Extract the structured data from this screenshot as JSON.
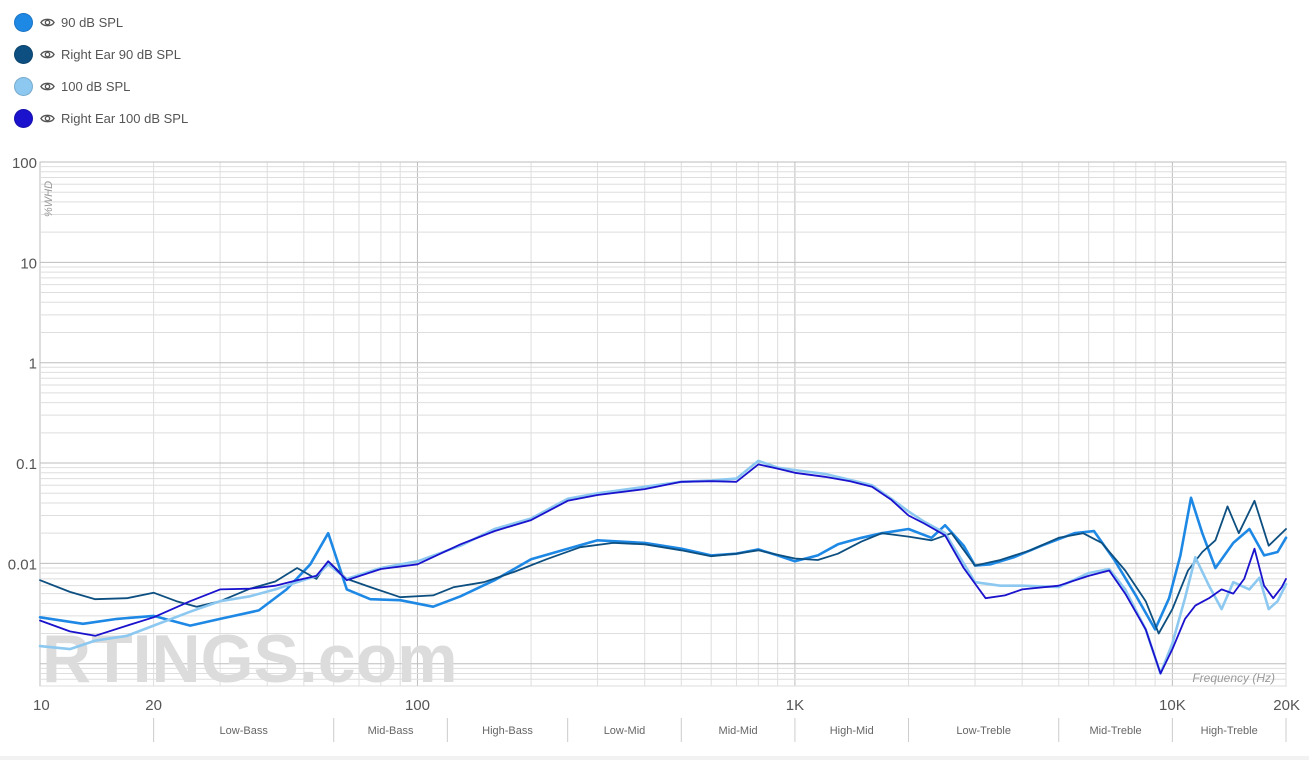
{
  "legend": [
    {
      "label": "90 dB SPL",
      "color": "#1e88e5"
    },
    {
      "label": "Right Ear 90 dB SPL",
      "color": "#0d4f80"
    },
    {
      "label": "100 dB SPL",
      "color": "#8cc8f0"
    },
    {
      "label": "Right Ear 100 dB SPL",
      "color": "#1a12cc"
    }
  ],
  "watermark": "RTINGS.com",
  "chart_data": {
    "type": "line",
    "xlabel": "Frequency (Hz)",
    "ylabel": "%WHD",
    "x_scale": "log",
    "y_scale": "log",
    "xlim": [
      10,
      20000
    ],
    "ylim": [
      0.0006,
      100
    ],
    "x_ticks": [
      {
        "value": 10,
        "label": "10"
      },
      {
        "value": 20,
        "label": "20"
      },
      {
        "value": 100,
        "label": "100"
      },
      {
        "value": 1000,
        "label": "1K"
      },
      {
        "value": 10000,
        "label": "10K"
      },
      {
        "value": 20000,
        "label": "20K"
      }
    ],
    "y_ticks": [
      {
        "value": 100,
        "label": "100"
      },
      {
        "value": 10,
        "label": "10"
      },
      {
        "value": 1,
        "label": "1"
      },
      {
        "value": 0.1,
        "label": "0.1"
      },
      {
        "value": 0.01,
        "label": "0.01"
      }
    ],
    "grid": true,
    "bands": [
      {
        "label": "Low-Bass",
        "from": 20,
        "to": 60
      },
      {
        "label": "Mid-Bass",
        "from": 60,
        "to": 120
      },
      {
        "label": "High-Bass",
        "from": 120,
        "to": 250
      },
      {
        "label": "Low-Mid",
        "from": 250,
        "to": 500
      },
      {
        "label": "Mid-Mid",
        "from": 500,
        "to": 1000
      },
      {
        "label": "High-Mid",
        "from": 1000,
        "to": 2000
      },
      {
        "label": "Low-Treble",
        "from": 2000,
        "to": 5000
      },
      {
        "label": "Mid-Treble",
        "from": 5000,
        "to": 10000
      },
      {
        "label": "High-Treble",
        "from": 10000,
        "to": 20000
      }
    ],
    "series": [
      {
        "name": "90 dB SPL",
        "color": "#1e88e5",
        "points": [
          [
            10,
            0.0029
          ],
          [
            13,
            0.0025
          ],
          [
            16,
            0.0028
          ],
          [
            20,
            0.003
          ],
          [
            25,
            0.0024
          ],
          [
            30,
            0.0028
          ],
          [
            38,
            0.0034
          ],
          [
            45,
            0.0055
          ],
          [
            52,
            0.0098
          ],
          [
            58,
            0.02
          ],
          [
            65,
            0.0055
          ],
          [
            75,
            0.0044
          ],
          [
            90,
            0.0043
          ],
          [
            110,
            0.0037
          ],
          [
            130,
            0.0047
          ],
          [
            160,
            0.0068
          ],
          [
            200,
            0.011
          ],
          [
            250,
            0.014
          ],
          [
            300,
            0.017
          ],
          [
            400,
            0.016
          ],
          [
            500,
            0.014
          ],
          [
            600,
            0.012
          ],
          [
            700,
            0.0125
          ],
          [
            800,
            0.0138
          ],
          [
            900,
            0.012
          ],
          [
            1000,
            0.0105
          ],
          [
            1150,
            0.012
          ],
          [
            1300,
            0.0155
          ],
          [
            1500,
            0.018
          ],
          [
            1700,
            0.02
          ],
          [
            2000,
            0.022
          ],
          [
            2300,
            0.018
          ],
          [
            2500,
            0.024
          ],
          [
            2800,
            0.015
          ],
          [
            3000,
            0.0095
          ],
          [
            3300,
            0.0098
          ],
          [
            3800,
            0.0115
          ],
          [
            4500,
            0.015
          ],
          [
            5500,
            0.02
          ],
          [
            6200,
            0.021
          ],
          [
            7000,
            0.011
          ],
          [
            8000,
            0.0048
          ],
          [
            9000,
            0.0022
          ],
          [
            9800,
            0.0045
          ],
          [
            10500,
            0.012
          ],
          [
            11200,
            0.045
          ],
          [
            12000,
            0.02
          ],
          [
            13000,
            0.009
          ],
          [
            14500,
            0.016
          ],
          [
            16000,
            0.022
          ],
          [
            17500,
            0.012
          ],
          [
            19000,
            0.013
          ],
          [
            20000,
            0.018
          ]
        ]
      },
      {
        "name": "Right Ear 90 dB SPL",
        "color": "#0d4f80",
        "points": [
          [
            10,
            0.0068
          ],
          [
            12,
            0.0052
          ],
          [
            14,
            0.0044
          ],
          [
            17,
            0.0045
          ],
          [
            20,
            0.0051
          ],
          [
            23,
            0.0042
          ],
          [
            26,
            0.0037
          ],
          [
            30,
            0.0042
          ],
          [
            36,
            0.0056
          ],
          [
            42,
            0.0066
          ],
          [
            48,
            0.009
          ],
          [
            54,
            0.007
          ],
          [
            58,
            0.0105
          ],
          [
            65,
            0.007
          ],
          [
            75,
            0.0058
          ],
          [
            90,
            0.0046
          ],
          [
            110,
            0.0048
          ],
          [
            125,
            0.0058
          ],
          [
            150,
            0.0065
          ],
          [
            180,
            0.0082
          ],
          [
            220,
            0.011
          ],
          [
            270,
            0.0145
          ],
          [
            330,
            0.016
          ],
          [
            400,
            0.0155
          ],
          [
            500,
            0.0135
          ],
          [
            600,
            0.0118
          ],
          [
            700,
            0.0125
          ],
          [
            800,
            0.0135
          ],
          [
            900,
            0.0122
          ],
          [
            1000,
            0.0112
          ],
          [
            1150,
            0.0108
          ],
          [
            1300,
            0.0125
          ],
          [
            1500,
            0.0165
          ],
          [
            1700,
            0.02
          ],
          [
            2000,
            0.0185
          ],
          [
            2300,
            0.017
          ],
          [
            2600,
            0.02
          ],
          [
            3000,
            0.0095
          ],
          [
            3500,
            0.0108
          ],
          [
            4200,
            0.0135
          ],
          [
            5000,
            0.018
          ],
          [
            5800,
            0.02
          ],
          [
            6500,
            0.016
          ],
          [
            7500,
            0.0085
          ],
          [
            8500,
            0.0042
          ],
          [
            9200,
            0.002
          ],
          [
            10000,
            0.0035
          ],
          [
            11000,
            0.0085
          ],
          [
            12000,
            0.013
          ],
          [
            13000,
            0.017
          ],
          [
            14000,
            0.037
          ],
          [
            15000,
            0.02
          ],
          [
            16500,
            0.042
          ],
          [
            18000,
            0.015
          ],
          [
            20000,
            0.022
          ]
        ]
      },
      {
        "name": "100 dB SPL",
        "color": "#8cc8f0",
        "points": [
          [
            10,
            0.0015
          ],
          [
            12,
            0.0014
          ],
          [
            14,
            0.0017
          ],
          [
            17,
            0.0019
          ],
          [
            20,
            0.0024
          ],
          [
            25,
            0.0033
          ],
          [
            30,
            0.0042
          ],
          [
            36,
            0.0047
          ],
          [
            42,
            0.0055
          ],
          [
            48,
            0.0065
          ],
          [
            54,
            0.0075
          ],
          [
            58,
            0.0098
          ],
          [
            65,
            0.007
          ],
          [
            80,
            0.009
          ],
          [
            100,
            0.0105
          ],
          [
            130,
            0.015
          ],
          [
            160,
            0.022
          ],
          [
            200,
            0.028
          ],
          [
            250,
            0.044
          ],
          [
            300,
            0.05
          ],
          [
            400,
            0.058
          ],
          [
            500,
            0.065
          ],
          [
            600,
            0.067
          ],
          [
            700,
            0.07
          ],
          [
            800,
            0.105
          ],
          [
            900,
            0.09
          ],
          [
            1000,
            0.085
          ],
          [
            1200,
            0.078
          ],
          [
            1400,
            0.068
          ],
          [
            1600,
            0.06
          ],
          [
            1800,
            0.044
          ],
          [
            2000,
            0.033
          ],
          [
            2200,
            0.026
          ],
          [
            2500,
            0.02
          ],
          [
            2800,
            0.01
          ],
          [
            3000,
            0.0065
          ],
          [
            3500,
            0.006
          ],
          [
            4000,
            0.006
          ],
          [
            5000,
            0.0058
          ],
          [
            6000,
            0.008
          ],
          [
            6800,
            0.0088
          ],
          [
            7500,
            0.0055
          ],
          [
            8500,
            0.0022
          ],
          [
            9300,
            0.0008
          ],
          [
            10000,
            0.0016
          ],
          [
            10800,
            0.0045
          ],
          [
            11500,
            0.0115
          ],
          [
            12500,
            0.006
          ],
          [
            13500,
            0.0035
          ],
          [
            14500,
            0.0065
          ],
          [
            16000,
            0.0055
          ],
          [
            17000,
            0.0072
          ],
          [
            18000,
            0.0035
          ],
          [
            19000,
            0.0042
          ],
          [
            20000,
            0.0062
          ]
        ]
      },
      {
        "name": "Right Ear 100 dB SPL",
        "color": "#1a12cc",
        "points": [
          [
            10,
            0.0027
          ],
          [
            12,
            0.0021
          ],
          [
            14,
            0.0019
          ],
          [
            17,
            0.0024
          ],
          [
            20,
            0.0029
          ],
          [
            25,
            0.0042
          ],
          [
            30,
            0.0055
          ],
          [
            36,
            0.0056
          ],
          [
            42,
            0.006
          ],
          [
            48,
            0.0068
          ],
          [
            54,
            0.0075
          ],
          [
            58,
            0.0105
          ],
          [
            65,
            0.0068
          ],
          [
            80,
            0.0088
          ],
          [
            100,
            0.0098
          ],
          [
            130,
            0.0155
          ],
          [
            160,
            0.021
          ],
          [
            200,
            0.027
          ],
          [
            250,
            0.042
          ],
          [
            300,
            0.048
          ],
          [
            400,
            0.055
          ],
          [
            500,
            0.065
          ],
          [
            600,
            0.066
          ],
          [
            700,
            0.065
          ],
          [
            800,
            0.097
          ],
          [
            900,
            0.088
          ],
          [
            1000,
            0.08
          ],
          [
            1200,
            0.073
          ],
          [
            1400,
            0.066
          ],
          [
            1600,
            0.058
          ],
          [
            1800,
            0.043
          ],
          [
            2000,
            0.03
          ],
          [
            2200,
            0.025
          ],
          [
            2500,
            0.019
          ],
          [
            2800,
            0.009
          ],
          [
            3200,
            0.0045
          ],
          [
            3600,
            0.0048
          ],
          [
            4000,
            0.0055
          ],
          [
            5000,
            0.006
          ],
          [
            6000,
            0.0075
          ],
          [
            6800,
            0.0085
          ],
          [
            7500,
            0.005
          ],
          [
            8500,
            0.0022
          ],
          [
            9300,
            0.0008
          ],
          [
            10000,
            0.0014
          ],
          [
            10800,
            0.0028
          ],
          [
            11500,
            0.0038
          ],
          [
            12500,
            0.0045
          ],
          [
            13500,
            0.0055
          ],
          [
            14500,
            0.005
          ],
          [
            15500,
            0.007
          ],
          [
            16500,
            0.014
          ],
          [
            17500,
            0.006
          ],
          [
            18500,
            0.0045
          ],
          [
            19500,
            0.0058
          ],
          [
            20000,
            0.007
          ]
        ]
      }
    ]
  }
}
